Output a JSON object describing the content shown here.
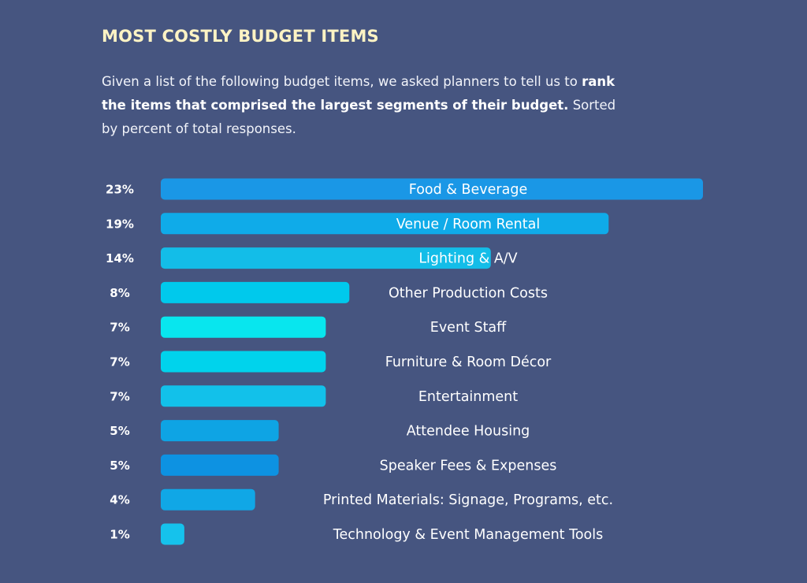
{
  "header": {
    "title": "MOST COSTLY BUDGET ITEMS",
    "intro_part1": "Given a list of the following budget items, we asked planners to tell us to ",
    "intro_bold": "rank the items that comprised the largest segments of their budget.",
    "intro_part2": " Sorted by percent of total responses."
  },
  "chart_data": {
    "type": "bar",
    "orientation": "horizontal",
    "unit": "%",
    "categories": [
      "Food & Beverage",
      "Venue / Room Rental",
      "Lighting & A/V",
      "Other Production Costs",
      "Event Staff",
      "Furniture & Room Décor",
      "Entertainment",
      "Attendee Housing",
      "Speaker Fees & Expenses",
      "Printed Materials: Signage, Programs, etc.",
      "Technology & Event Management Tools"
    ],
    "values": [
      23,
      19,
      14,
      8,
      7,
      7,
      7,
      5,
      5,
      4,
      1
    ],
    "value_labels": [
      "23%",
      "19%",
      "14%",
      "8%",
      "7%",
      "7%",
      "7%",
      "5%",
      "5%",
      "4%",
      "1%"
    ],
    "bar_colors": [
      "#1a97e6",
      "#0fabe9",
      "#13bde8",
      "#00c9ec",
      "#08e6ee",
      "#00d3ec",
      "#12c1ea",
      "#0ea4e4",
      "#0d92e2",
      "#10a7e6",
      "#15c2ec"
    ],
    "title": "MOST COSTLY BUDGET ITEMS",
    "grid": false,
    "legend": "none"
  }
}
